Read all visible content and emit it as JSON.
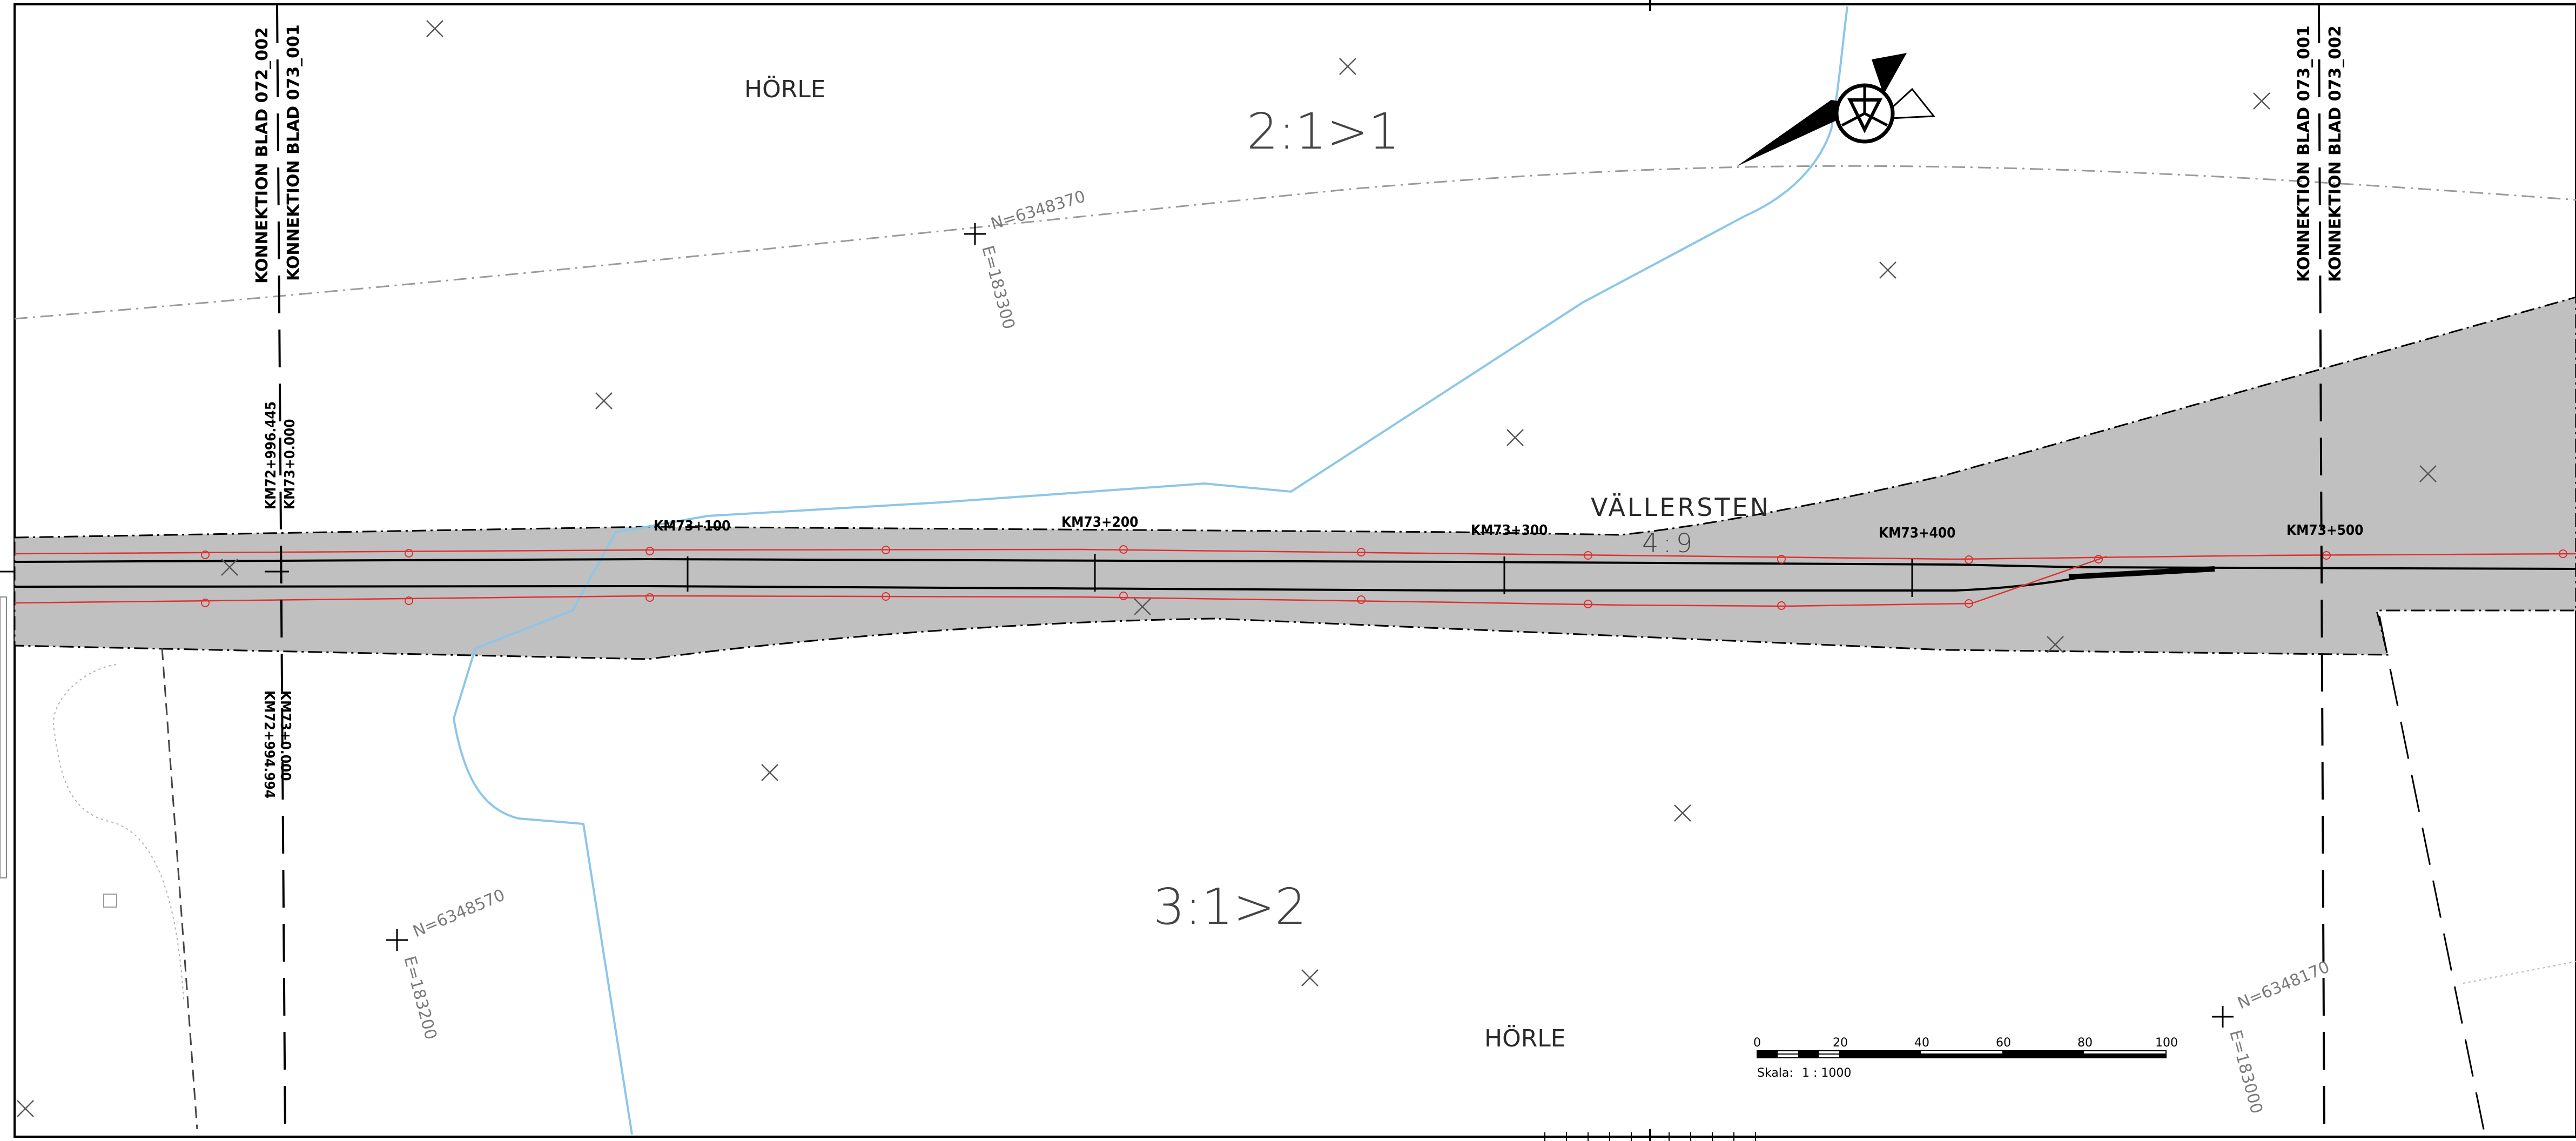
{
  "map": {
    "place_names": [
      "HÖRLE",
      "HÖRLE",
      "VÄLLERSTEN"
    ],
    "parcels": [
      "2:1>1",
      "3:1>2",
      "4:9"
    ],
    "connections": {
      "left": [
        "KONNEKTION BLAD 072_002",
        "KONNEKTION BLAD 073_001"
      ],
      "right": [
        "KONNEKTION BLAD 073_001",
        "KONNEKTION BLAD 073_002"
      ]
    },
    "chainage_top_left": [
      "KM72+996.445",
      "KM73+0.000"
    ],
    "chainage_bottom_left": [
      "KM73+0.000",
      "KM72+994.994"
    ],
    "km_markers": [
      "KM73+100",
      "KM73+200",
      "KM73+300",
      "KM73+400",
      "KM73+500"
    ],
    "coordinates": [
      {
        "n": "N=6348370",
        "e": "E=183300"
      },
      {
        "n": "N=6348570",
        "e": "E=183200"
      },
      {
        "n": "N=6348170",
        "e": "E=183000"
      }
    ],
    "scale_bar": {
      "ticks": [
        "0",
        "20",
        "40",
        "60",
        "80",
        "100"
      ],
      "label": "Skala:",
      "value": "1 : 1000"
    },
    "colors": {
      "road_fill": "#c0c0c0",
      "stream": "#8cc6ea",
      "chainage_line": "#000000",
      "edge_line": "#e03030",
      "border_dash": "#9a9a9a"
    },
    "icons": [
      "north-arrow-icon",
      "survey-cross-icon"
    ]
  }
}
